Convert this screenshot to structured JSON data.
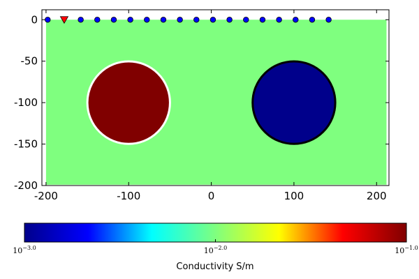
{
  "chart_data": {
    "type": "heatmap",
    "title": "",
    "xlabel": "",
    "ylabel": "",
    "xlim": [
      -205,
      215
    ],
    "ylim": [
      -200,
      12
    ],
    "grid": false,
    "x_ticks": [
      -200,
      -100,
      0,
      100,
      200
    ],
    "x_tick_labels": [
      "-200",
      "-100",
      "0",
      "100",
      "200"
    ],
    "y_ticks": [
      0,
      -50,
      -100,
      -150,
      -200
    ],
    "y_tick_labels": [
      "0",
      "-50",
      "-100",
      "-150",
      "-200"
    ],
    "model_extent": {
      "x": [
        -200,
        212
      ],
      "y": [
        -199,
        0
      ]
    },
    "background": {
      "conductivity": 0.01,
      "color": "#7fff7f"
    },
    "bodies": [
      {
        "name": "conductive-cylinder",
        "center": [
          -100,
          -100
        ],
        "radius": 50,
        "conductivity": 0.1,
        "color": "#800000",
        "outline_color": "#ffffff"
      },
      {
        "name": "resistive-cylinder",
        "center": [
          100,
          -100
        ],
        "radius": 50,
        "conductivity": 0.001,
        "color": "#00008b",
        "outline_color": "#000000"
      }
    ],
    "source": {
      "x": -178,
      "y": 0,
      "marker": "triangle-down",
      "color": "#ff0000"
    },
    "receivers": {
      "y": 0,
      "x": [
        -198,
        -158,
        -138,
        -118,
        -98,
        -78,
        -58,
        -38,
        -18,
        2,
        22,
        42,
        62,
        82,
        102,
        122,
        142
      ],
      "color": "#0000ff"
    },
    "colorbar": {
      "label": "Conductivity S/m",
      "scale": "log",
      "range": [
        0.001,
        0.1
      ],
      "ticks": [
        {
          "value": 0.001,
          "base": "10",
          "exponent": "−3.0"
        },
        {
          "value": 0.01,
          "base": "10",
          "exponent": "−2.0"
        },
        {
          "value": 0.1,
          "base": "10",
          "exponent": "−1.0"
        }
      ],
      "colormap": "jet",
      "colormap_stops": [
        "#00008b",
        "#0000ff",
        "#00ffff",
        "#7fff7f",
        "#ffff00",
        "#ff0000",
        "#800000"
      ]
    }
  }
}
